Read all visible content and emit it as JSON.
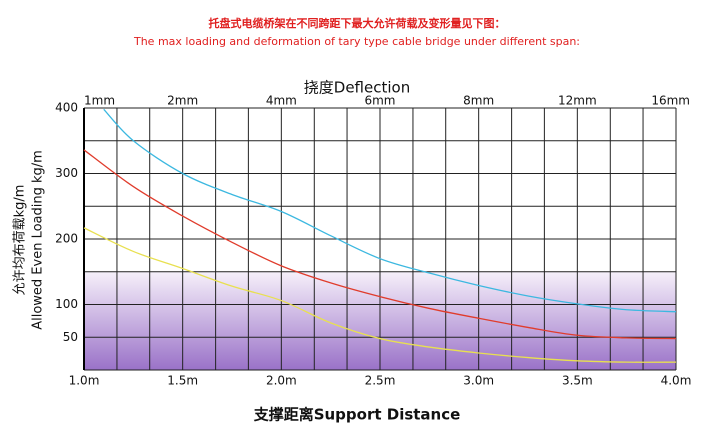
{
  "chart_data": {
    "type": "line",
    "title": "托盘式电缆桥架在不同跨距下最大允许荷载及变形量见下图：",
    "subtitle": "The max loading and deformation of tary type cable bridge under different span:",
    "x2_label": "挠度Deflection",
    "y_label": [
      "允许均布荷载kg/m",
      "Allowed Even Loading kg/m"
    ],
    "x_label": "支撑距离Support Distance",
    "xlim": [
      1.0,
      4.0
    ],
    "ylim": [
      0,
      400
    ],
    "xticks": [
      {
        "value": 1.0,
        "label": "1.0m"
      },
      {
        "value": 1.5,
        "label": "1.5m"
      },
      {
        "value": 2.0,
        "label": "2.0m"
      },
      {
        "value": 2.5,
        "label": "2.5m"
      },
      {
        "value": 3.0,
        "label": "3.0m"
      },
      {
        "value": 3.5,
        "label": "3.5m"
      },
      {
        "value": 4.0,
        "label": "4.0m"
      }
    ],
    "x2ticks": [
      {
        "value": 1.0,
        "label": "1mm"
      },
      {
        "value": 1.5,
        "label": "2mm"
      },
      {
        "value": 2.0,
        "label": "4mm"
      },
      {
        "value": 2.5,
        "label": "6mm"
      },
      {
        "value": 3.0,
        "label": "8mm"
      },
      {
        "value": 3.5,
        "label": "12mm"
      },
      {
        "value": 4.0,
        "label": "16mm"
      }
    ],
    "yticks": [
      50,
      100,
      200,
      300,
      400
    ],
    "x_grid": [
      1.0,
      1.167,
      1.333,
      1.5,
      1.667,
      1.833,
      2.0,
      2.167,
      2.333,
      2.5,
      2.667,
      2.833,
      3.0,
      3.167,
      3.333,
      3.5,
      3.667,
      3.833,
      4.0
    ],
    "y_grid": [
      0,
      50,
      100,
      150,
      200,
      250,
      300,
      350,
      400
    ],
    "series": [
      {
        "color": "#3cb8e0",
        "x": [
          1.1,
          1.25,
          1.5,
          1.75,
          2.0,
          2.25,
          2.5,
          2.75,
          3.0,
          3.25,
          3.5,
          3.75,
          4.0
        ],
        "values": [
          398,
          350,
          300,
          268,
          242,
          205,
          170,
          148,
          129,
          113,
          101,
          92,
          89
        ]
      },
      {
        "color": "#e03c2c",
        "x": [
          1.0,
          1.25,
          1.5,
          1.75,
          2.0,
          2.25,
          2.5,
          2.75,
          3.0,
          3.25,
          3.5,
          3.75,
          4.0
        ],
        "values": [
          336,
          280,
          235,
          195,
          159,
          133,
          112,
          94,
          79,
          65,
          53,
          49,
          48
        ]
      },
      {
        "color": "#e8e050",
        "x": [
          1.0,
          1.25,
          1.5,
          1.75,
          2.0,
          2.25,
          2.5,
          2.75,
          3.0,
          3.25,
          3.5,
          3.75,
          4.0
        ],
        "values": [
          217,
          181,
          155,
          128,
          106,
          72,
          48,
          35,
          26,
          19,
          14,
          12,
          12
        ]
      }
    ]
  }
}
